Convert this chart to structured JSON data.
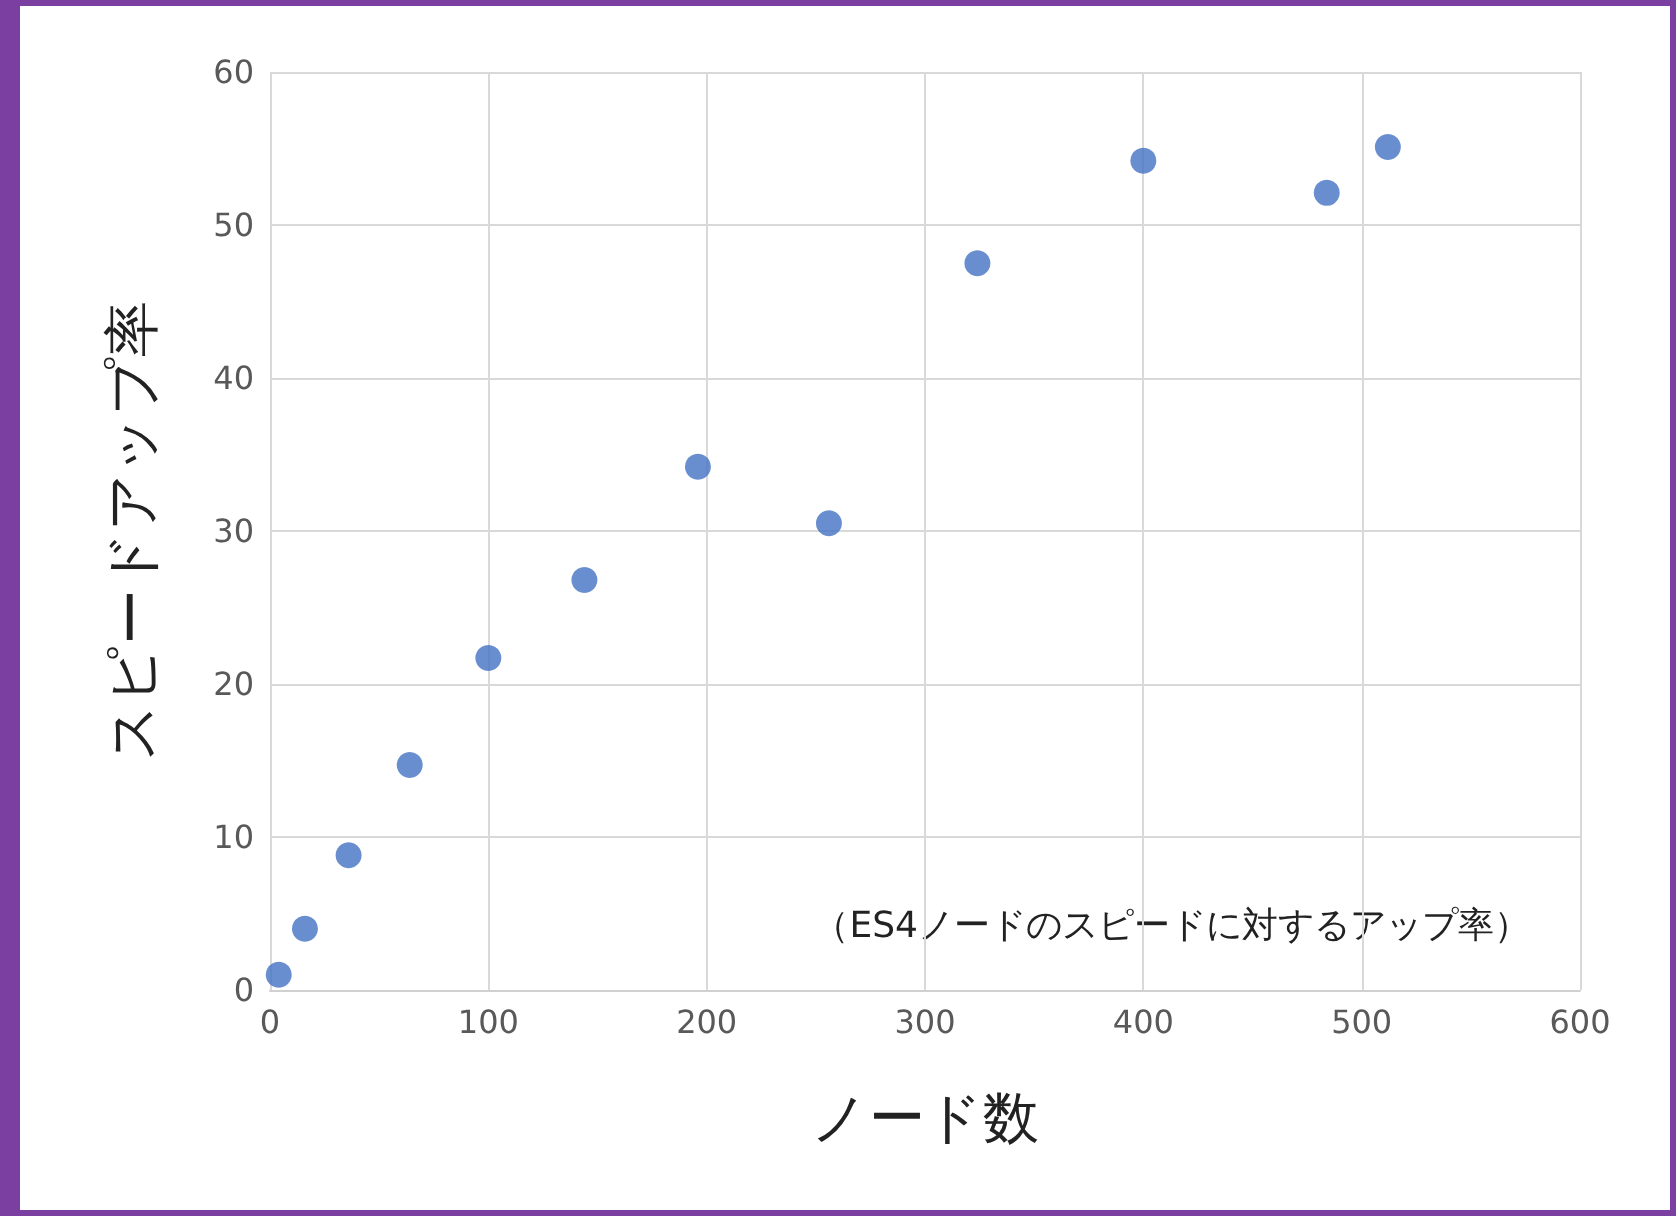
{
  "chart_data": {
    "type": "scatter",
    "xlabel": "ノード数",
    "ylabel": "スピードアップ率",
    "x": [
      4,
      16,
      36,
      64,
      100,
      144,
      196,
      256,
      324,
      400,
      484,
      512
    ],
    "values": [
      1.0,
      4.0,
      8.8,
      14.7,
      21.7,
      26.8,
      34.2,
      30.5,
      47.5,
      54.2,
      52.1,
      55.1
    ],
    "color": "#4472c4",
    "marker": "circle",
    "xlim": [
      0,
      600
    ],
    "xticks": [
      0,
      100,
      200,
      300,
      400,
      500,
      600
    ],
    "ylim": [
      0,
      60
    ],
    "yticks": [
      0,
      10,
      20,
      30,
      40,
      50,
      60
    ],
    "grid": true,
    "annotations": [
      "（ES4ノードのスピードに対するアップ率）"
    ]
  }
}
